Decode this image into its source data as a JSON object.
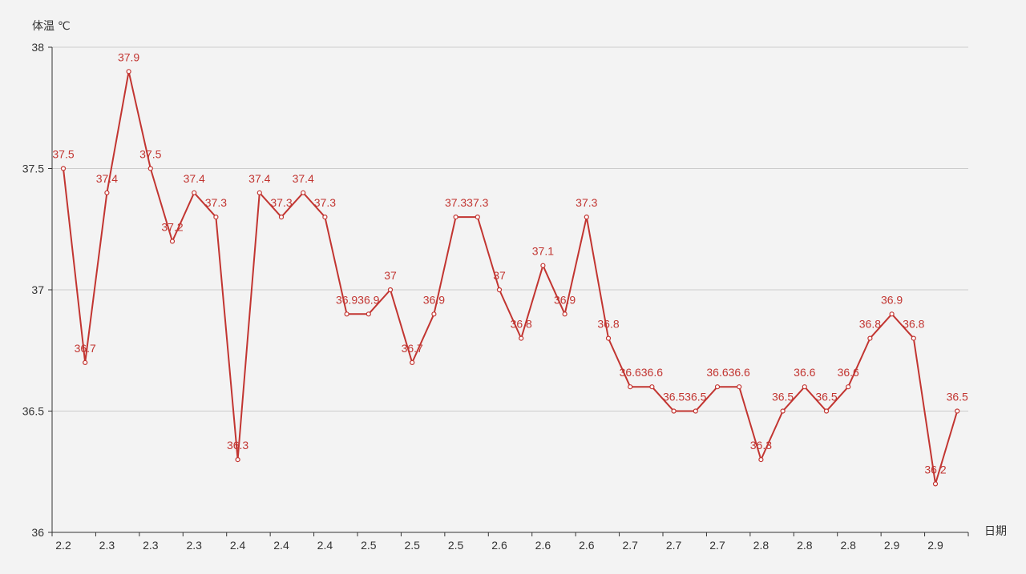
{
  "chart_data": {
    "type": "line",
    "ylabel": "体温 ℃",
    "xlabel": "日期",
    "ylim": [
      36,
      38
    ],
    "yticks": [
      "36",
      "36.5",
      "37",
      "37.5",
      "38"
    ],
    "grid": "horizontal",
    "x_tick_labels": [
      "2.2",
      "2.3",
      "2.3",
      "2.3",
      "2.4",
      "2.4",
      "2.4",
      "2.5",
      "2.5",
      "2.5",
      "2.6",
      "2.6",
      "2.6",
      "2.7",
      "2.7",
      "2.7",
      "2.8",
      "2.8",
      "2.8",
      "2.9",
      "2.9"
    ],
    "values": [
      37.5,
      36.7,
      37.4,
      37.9,
      37.5,
      37.2,
      37.4,
      37.3,
      36.3,
      37.4,
      37.3,
      37.4,
      37.3,
      36.9,
      36.9,
      37,
      36.7,
      36.9,
      37.3,
      37.3,
      37,
      36.8,
      37.1,
      36.9,
      37.3,
      36.8,
      36.6,
      36.6,
      36.5,
      36.5,
      36.6,
      36.6,
      36.3,
      36.5,
      36.6,
      36.5,
      36.6,
      36.8,
      36.9,
      36.8,
      36.2,
      36.5
    ],
    "data_labels": [
      "37.5",
      "36.7",
      "37.4",
      "37.9",
      "37.5",
      "37.2",
      "37.4",
      "37.3",
      "36.3",
      "37.4",
      "37.3",
      "37.4",
      "37.3",
      "36.9",
      "36.9",
      "37",
      "36.7",
      "36.9",
      "37.3",
      "37.3",
      "37",
      "36.8",
      "37.1",
      "36.9",
      "37.3",
      "36.8",
      "36.6",
      "36.6",
      "36.5",
      "36.5",
      "36.6",
      "36.6",
      "36.3",
      "36.5",
      "36.6",
      "36.5",
      "36.6",
      "36.8",
      "36.9",
      "36.8",
      "36.2",
      "36.5"
    ],
    "colors": {
      "line": "#c23531",
      "axis": "#333333",
      "grid": "#cccccc",
      "background": "#f3f3f3",
      "point_fill": "#ffffff"
    }
  }
}
